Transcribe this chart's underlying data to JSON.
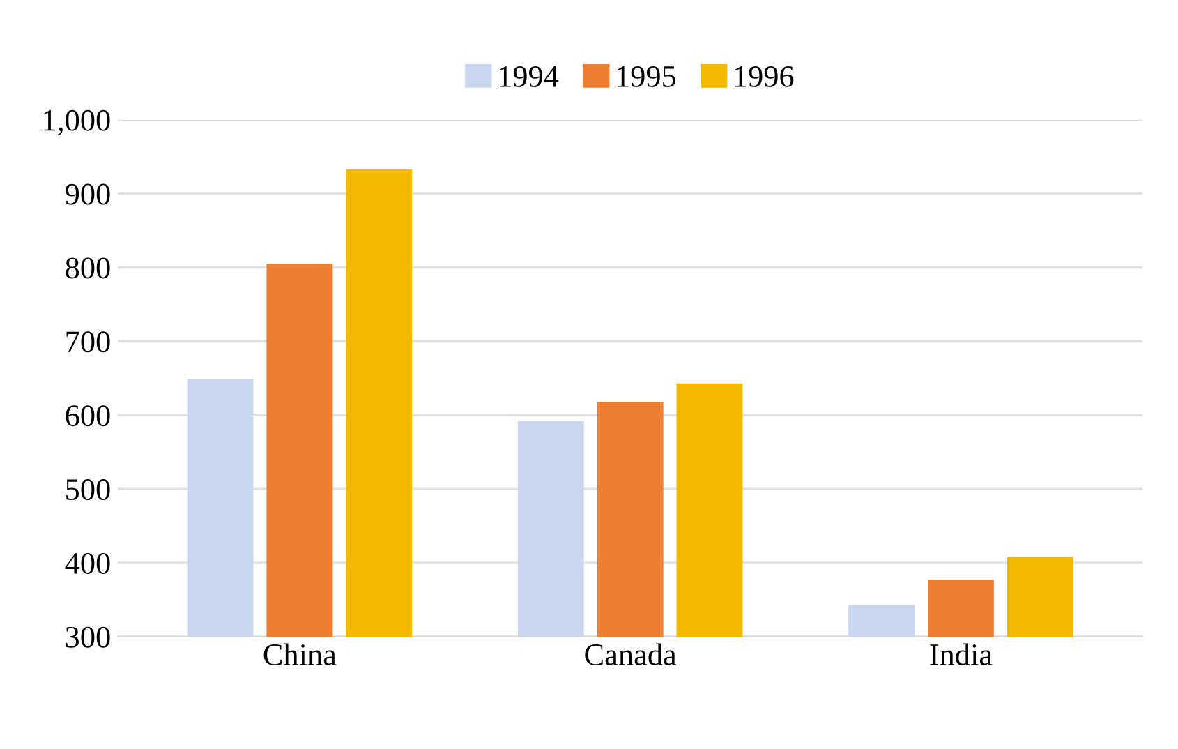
{
  "chart_data": {
    "type": "bar",
    "categories": [
      "China",
      "Canada",
      "India"
    ],
    "series": [
      {
        "name": "1994",
        "color": "#c9d6ef",
        "values": [
          649,
          592,
          343
        ]
      },
      {
        "name": "1995",
        "color": "#ed7d31",
        "values": [
          805,
          618,
          377
        ]
      },
      {
        "name": "1996",
        "color": "#f2b900",
        "values": [
          933,
          643,
          408
        ]
      }
    ],
    "ylim": [
      300,
      1000
    ],
    "yticks": [
      300,
      400,
      500,
      600,
      700,
      800,
      900,
      {
        "value": 1000,
        "label": "1,000"
      }
    ],
    "grid": "y",
    "legend": "top"
  }
}
